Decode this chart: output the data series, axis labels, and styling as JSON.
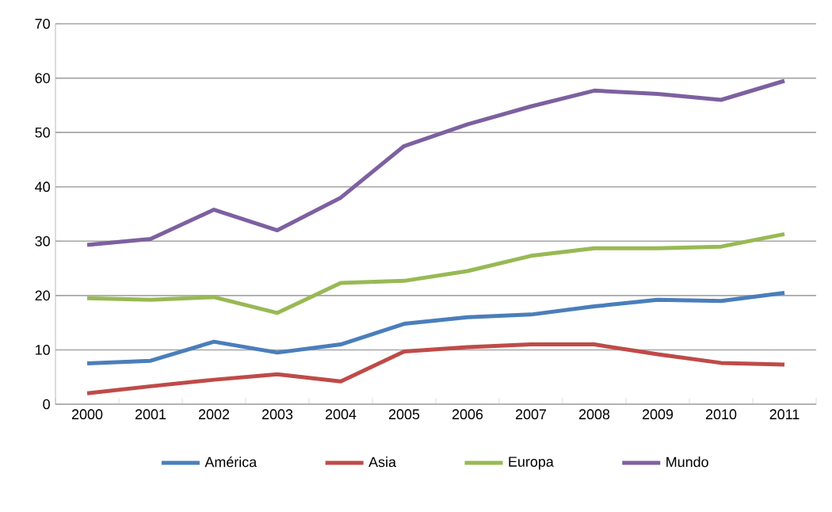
{
  "chart_data": {
    "type": "line",
    "categories": [
      "2000",
      "2001",
      "2002",
      "2003",
      "2004",
      "2005",
      "2006",
      "2007",
      "2008",
      "2009",
      "2010",
      "2011"
    ],
    "series": [
      {
        "name": "América",
        "color": "#4a7ebb",
        "values": [
          7.5,
          8,
          11.5,
          9.5,
          11,
          14.8,
          16,
          16.5,
          18,
          19.2,
          19,
          20.5
        ]
      },
      {
        "name": "Asia",
        "color": "#be4b48",
        "values": [
          2,
          3.3,
          4.5,
          5.5,
          4.2,
          9.7,
          10.5,
          11,
          11,
          9.2,
          7.6,
          7.3
        ]
      },
      {
        "name": "Europa",
        "color": "#98b954",
        "values": [
          19.5,
          19.2,
          19.7,
          16.8,
          22.3,
          22.7,
          24.5,
          27.3,
          28.7,
          28.7,
          29,
          31.3
        ]
      },
      {
        "name": "Mundo",
        "color": "#7d60a0",
        "values": [
          29.3,
          30.4,
          35.8,
          32,
          38,
          47.5,
          51.5,
          54.8,
          57.7,
          57.1,
          56,
          59.5
        ]
      }
    ],
    "ylim": [
      0,
      70
    ],
    "yticks": [
      0,
      10,
      20,
      30,
      40,
      50,
      60,
      70
    ],
    "grid": "y",
    "legend": "bottom",
    "marker": "none",
    "line_style": "solid"
  }
}
